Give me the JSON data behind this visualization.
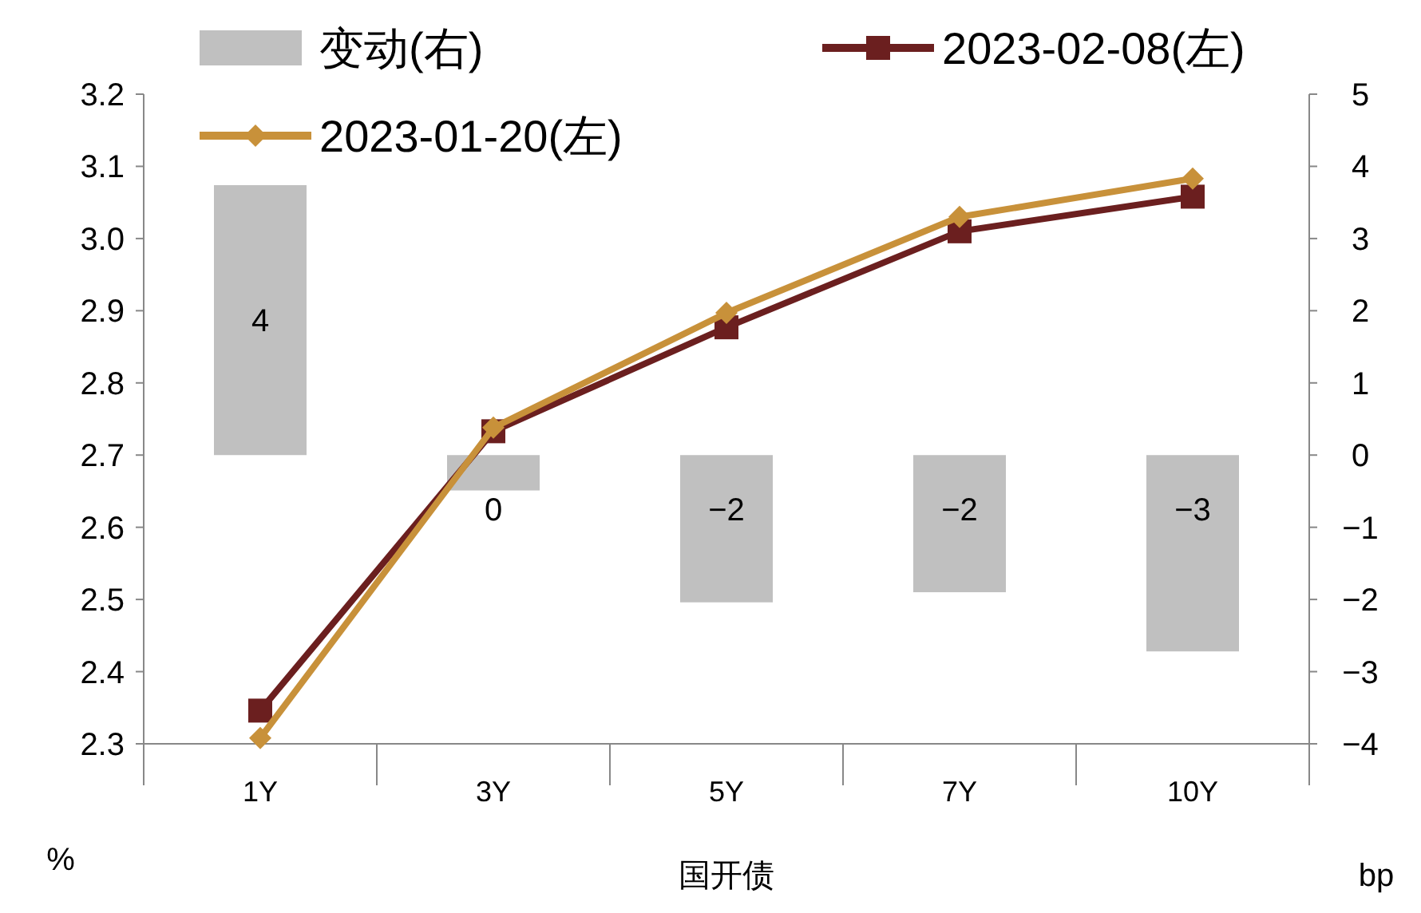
{
  "chart_data": {
    "type": "bar",
    "xlabel": "国开债",
    "ylabel": "%",
    "y2label": "bp",
    "categories": [
      "1Y",
      "3Y",
      "5Y",
      "7Y",
      "10Y"
    ],
    "ylim": [
      2.3,
      3.2
    ],
    "yticks": [
      {
        "value": 2.3,
        "label": "2.3"
      },
      {
        "value": 2.4,
        "label": "2.4"
      },
      {
        "value": 2.5,
        "label": "2.5"
      },
      {
        "value": 2.6,
        "label": "2.6"
      },
      {
        "value": 2.7,
        "label": "2.7"
      },
      {
        "value": 2.8,
        "label": "2.8"
      },
      {
        "value": 2.9,
        "label": "2.9"
      },
      {
        "value": 3.0,
        "label": "3.0"
      },
      {
        "value": 3.1,
        "label": "3.1"
      },
      {
        "value": 3.2,
        "label": "3.2"
      }
    ],
    "y2lim": [
      -4,
      5
    ],
    "y2ticks": [
      -4,
      -3,
      -2,
      -1,
      0,
      1,
      2,
      3,
      4,
      5
    ],
    "legend": "top",
    "grid": false,
    "series": [
      {
        "name": "变动(右)",
        "axis": "y2",
        "color": "#c0c0c0",
        "values": [
          3.74,
          -0.49,
          -2.04,
          -1.9,
          -2.72
        ],
        "value_labels": [
          "4",
          "0",
          "−2",
          "−2",
          "−3"
        ]
      },
      {
        "name": "2023-02-08(左)",
        "type": "line",
        "axis": "y",
        "color": "#6b1f1f",
        "marker": "square",
        "values": [
          2.346,
          2.733,
          2.877,
          3.01,
          3.058
        ]
      },
      {
        "name": "2023-01-20(左)",
        "type": "line",
        "axis": "y",
        "color": "#c8913a",
        "marker": "diamond",
        "values": [
          2.308,
          2.738,
          2.897,
          3.03,
          3.083
        ]
      }
    ]
  }
}
